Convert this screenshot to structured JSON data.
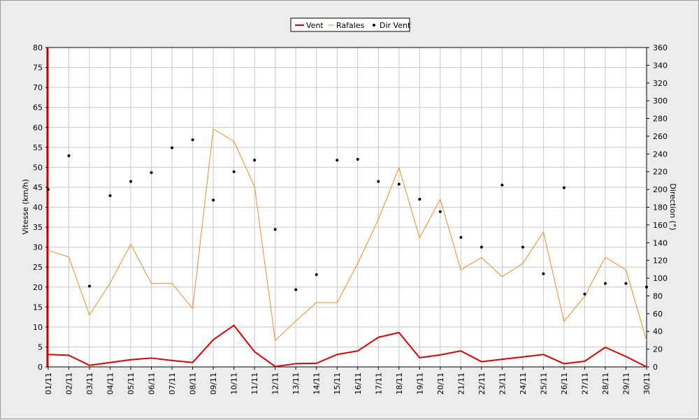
{
  "chart_data": {
    "type": "line",
    "categories": [
      "01/11",
      "02/11",
      "03/11",
      "04/11",
      "05/11",
      "06/11",
      "07/11",
      "08/11",
      "09/11",
      "10/11",
      "11/11",
      "12/11",
      "13/11",
      "14/11",
      "15/11",
      "16/11",
      "17/11",
      "18/11",
      "19/11",
      "20/11",
      "21/11",
      "22/11",
      "23/11",
      "24/11",
      "25/11",
      "26/11",
      "27/11",
      "28/11",
      "29/11",
      "30/11"
    ],
    "ylabel": "Vitesse (km/h)",
    "ylabel_right": "Direction (°)",
    "ylim": [
      0,
      80
    ],
    "ylim_right": [
      0,
      360
    ],
    "yticks": [
      0,
      5,
      10,
      15,
      20,
      25,
      30,
      35,
      40,
      45,
      50,
      55,
      60,
      65,
      70,
      75,
      80
    ],
    "yticks_right": [
      0,
      20,
      40,
      60,
      80,
      100,
      120,
      140,
      160,
      180,
      200,
      220,
      240,
      260,
      280,
      300,
      320,
      340,
      360
    ],
    "grid": true,
    "legend_position": "top-center",
    "series": [
      {
        "name": "Vent",
        "axis": "left",
        "color": "#e00000",
        "values": [
          3.1,
          2.9,
          0.4,
          1.1,
          1.8,
          2.2,
          1.6,
          1.1,
          6.8,
          10.4,
          3.8,
          0.1,
          0.8,
          0.9,
          3.1,
          4.0,
          7.4,
          8.6,
          2.3,
          3.0,
          4.0,
          1.3,
          1.9,
          2.5,
          3.1,
          0.8,
          1.4,
          4.9,
          2.6,
          0.0
        ]
      },
      {
        "name": "Rafales",
        "axis": "left",
        "color": "#f08c1e",
        "values": [
          29.2,
          27.5,
          13.0,
          21.0,
          30.7,
          20.9,
          20.9,
          14.6,
          59.6,
          56.5,
          45.2,
          6.6,
          11.5,
          16.1,
          16.1,
          25.9,
          36.9,
          49.9,
          32.3,
          42.0,
          24.3,
          27.4,
          22.6,
          25.9,
          33.8,
          11.4,
          17.7,
          27.5,
          24.3,
          6.6
        ]
      },
      {
        "name": "Dir Vent",
        "axis": "right",
        "color": "#000000",
        "values": [
          200,
          238,
          91,
          193,
          209,
          219,
          247,
          256,
          188,
          220,
          233,
          155,
          87,
          104,
          233,
          234,
          209,
          206,
          189,
          175,
          146,
          135,
          205,
          135,
          105,
          202,
          82,
          94,
          94,
          90
        ]
      }
    ]
  }
}
